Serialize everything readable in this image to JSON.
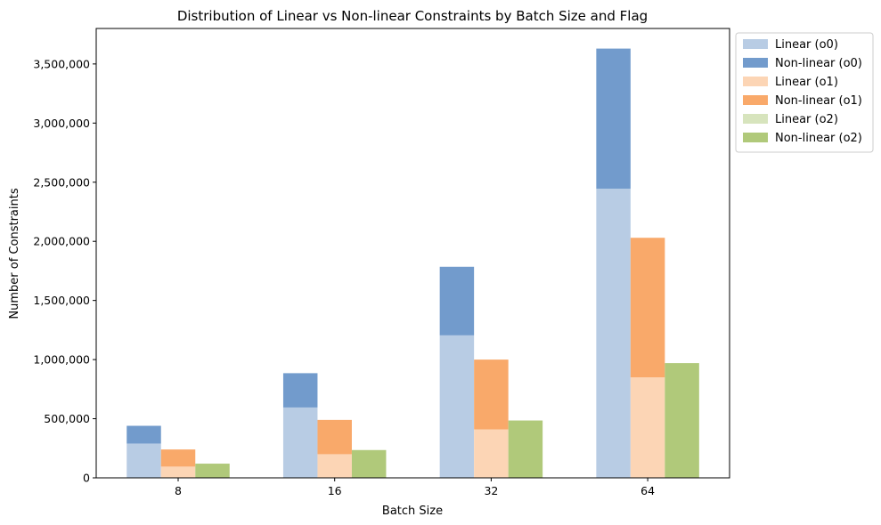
{
  "chart_data": {
    "type": "bar",
    "stacked": true,
    "title": "Distribution of Linear vs Non-linear Constraints by Batch Size and Flag",
    "xlabel": "Batch Size",
    "ylabel": "Number of Constraints",
    "categories": [
      "8",
      "16",
      "32",
      "64"
    ],
    "ylim": [
      0,
      3800000
    ],
    "yticks": [
      0,
      500000,
      1000000,
      1500000,
      2000000,
      2500000,
      3000000,
      3500000
    ],
    "ytick_labels": [
      "0",
      "500,000",
      "1,000,000",
      "1,500,000",
      "2,000,000",
      "2,500,000",
      "3,000,000",
      "3,500,000"
    ],
    "legend_position": "upper-right-outside",
    "groups": [
      {
        "flag": "o0",
        "linear": {
          "name": "Linear (o0)",
          "color": "#b8cce4",
          "values": [
            290000,
            595000,
            1205000,
            2445000
          ]
        },
        "nonlinear": {
          "name": "Non-linear (o0)",
          "color": "#729bcc",
          "values": [
            150000,
            290000,
            580000,
            1185000
          ]
        }
      },
      {
        "flag": "o1",
        "linear": {
          "name": "Linear (o1)",
          "color": "#fcd5b5",
          "values": [
            95000,
            200000,
            410000,
            850000
          ]
        },
        "nonlinear": {
          "name": "Non-linear (o1)",
          "color": "#f9a96a",
          "values": [
            145000,
            290000,
            590000,
            1180000
          ]
        }
      },
      {
        "flag": "o2",
        "linear": {
          "name": "Linear (o2)",
          "color": "#d7e4bd",
          "values": [
            0,
            0,
            0,
            0
          ]
        },
        "nonlinear": {
          "name": "Non-linear (o2)",
          "color": "#b0c97a",
          "values": [
            120000,
            235000,
            485000,
            970000
          ]
        }
      }
    ]
  }
}
